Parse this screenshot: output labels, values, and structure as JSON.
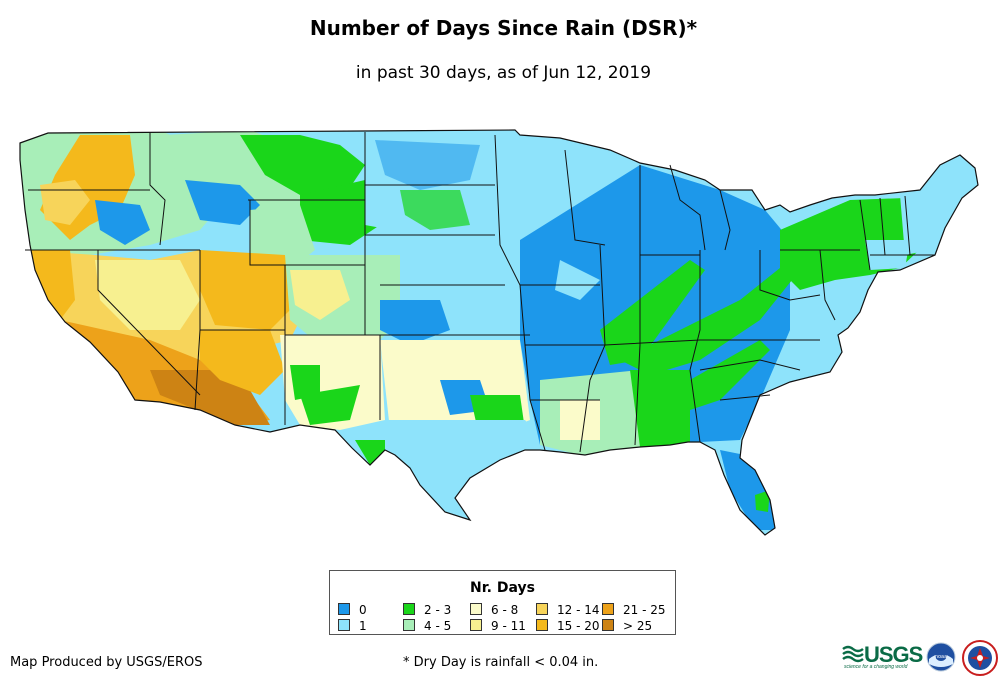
{
  "title": "Number of Days Since Rain (DSR)*",
  "subtitle": "in past 30 days, as of Jun 12, 2019",
  "legend": {
    "title": "Nr. Days",
    "items": [
      {
        "label": "0",
        "color": "#1d98ea"
      },
      {
        "label": "1",
        "color": "#8ee3fb"
      },
      {
        "label": "2 - 3",
        "color": "#1ad61a"
      },
      {
        "label": "4 - 5",
        "color": "#a8eeb8"
      },
      {
        "label": "6 - 8",
        "color": "#fbfbca"
      },
      {
        "label": "9 - 11",
        "color": "#f7f090"
      },
      {
        "label": "12 - 14",
        "color": "#f7d45a"
      },
      {
        "label": "15 - 20",
        "color": "#f4b91c"
      },
      {
        "label": "21 - 25",
        "color": "#eda21a"
      },
      {
        "label": "> 25",
        "color": "#cd8314"
      }
    ]
  },
  "footer": {
    "credit": "Map Produced by USGS/EROS",
    "note": "* Dry Day is rainfall < 0.04 in."
  },
  "logos": {
    "usgs": "USGS",
    "usgs_tagline": "science for a changing world",
    "noaa": "noaa",
    "nws_icon": "national-weather-service-icon"
  }
}
